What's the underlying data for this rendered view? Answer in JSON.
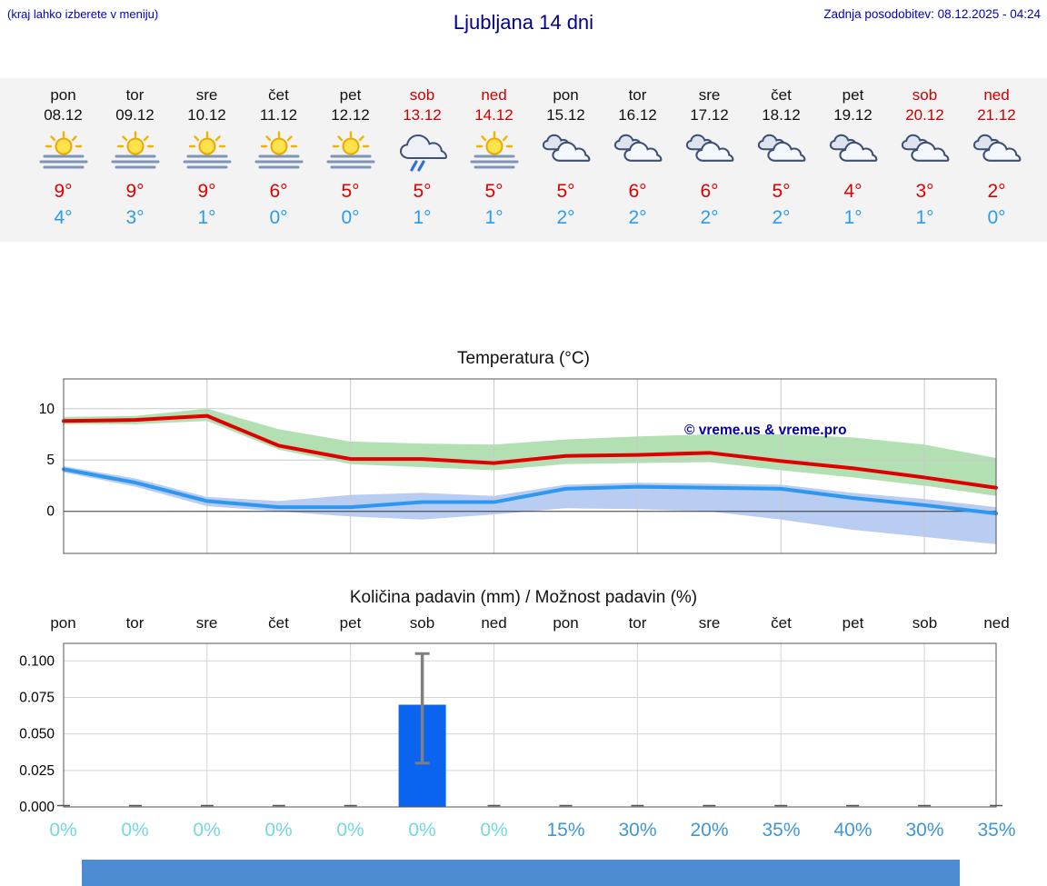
{
  "header": {
    "menu_hint": "(kraj lahko izberete v meniju)",
    "title": "Ljubljana 14 dni",
    "last_update": "Zadnja posodobitev: 08.12.2025 - 04:24"
  },
  "colors": {
    "link_blue": "#0000cc",
    "title_navy": "#00008b",
    "weekend_red": "#cc0000",
    "temp_max_red": "#dd0000",
    "temp_min_blue": "#2b9af0",
    "bar_blue": "#0b64f0",
    "prob_low_cyan": "#72d9e2",
    "prob_high_blue": "#3e96d9",
    "banner_blue": "#4d8bd3"
  },
  "forecast": {
    "days": [
      {
        "name": "pon",
        "date": "08.12",
        "weekend": false,
        "icon": "sun-fog",
        "tmax": "9°",
        "tmin": "4°"
      },
      {
        "name": "tor",
        "date": "09.12",
        "weekend": false,
        "icon": "sun-fog",
        "tmax": "9°",
        "tmin": "3°"
      },
      {
        "name": "sre",
        "date": "10.12",
        "weekend": false,
        "icon": "sun-fog",
        "tmax": "9°",
        "tmin": "1°"
      },
      {
        "name": "čet",
        "date": "11.12",
        "weekend": false,
        "icon": "sun-fog",
        "tmax": "6°",
        "tmin": "0°"
      },
      {
        "name": "pet",
        "date": "12.12",
        "weekend": false,
        "icon": "sun-fog",
        "tmax": "5°",
        "tmin": "0°"
      },
      {
        "name": "sob",
        "date": "13.12",
        "weekend": true,
        "icon": "rain",
        "tmax": "5°",
        "tmin": "1°"
      },
      {
        "name": "ned",
        "date": "14.12",
        "weekend": true,
        "icon": "sun-fog",
        "tmax": "5°",
        "tmin": "1°"
      },
      {
        "name": "pon",
        "date": "15.12",
        "weekend": false,
        "icon": "cloudy",
        "tmax": "5°",
        "tmin": "2°"
      },
      {
        "name": "tor",
        "date": "16.12",
        "weekend": false,
        "icon": "cloudy",
        "tmax": "6°",
        "tmin": "2°"
      },
      {
        "name": "sre",
        "date": "17.12",
        "weekend": false,
        "icon": "cloudy",
        "tmax": "6°",
        "tmin": "2°"
      },
      {
        "name": "čet",
        "date": "18.12",
        "weekend": false,
        "icon": "cloudy",
        "tmax": "5°",
        "tmin": "2°"
      },
      {
        "name": "pet",
        "date": "19.12",
        "weekend": false,
        "icon": "cloudy",
        "tmax": "4°",
        "tmin": "1°"
      },
      {
        "name": "sob",
        "date": "20.12",
        "weekend": true,
        "icon": "cloudy",
        "tmax": "3°",
        "tmin": "1°"
      },
      {
        "name": "ned",
        "date": "21.12",
        "weekend": true,
        "icon": "cloudy",
        "tmax": "2°",
        "tmin": "0°"
      }
    ]
  },
  "chart_data": [
    {
      "type": "line",
      "title": "Temperatura (°C)",
      "categories": [
        "pon",
        "tor",
        "sre",
        "čet",
        "pet",
        "sob",
        "ned",
        "pon",
        "tor",
        "sre",
        "čet",
        "pet",
        "sob",
        "ned"
      ],
      "ylim": [
        -4.1,
        12.9
      ],
      "yticks": [
        0,
        5,
        10
      ],
      "grid": true,
      "watermark": "© vreme.us & vreme.pro",
      "series": [
        {
          "name": "temp-max",
          "color": "#e00000",
          "values": [
            8.8,
            8.9,
            9.3,
            6.4,
            5.1,
            5.1,
            4.7,
            5.4,
            5.5,
            5.7,
            4.9,
            4.2,
            3.3,
            2.3
          ]
        },
        {
          "name": "temp-min",
          "color": "#2e97f0",
          "values": [
            4.1,
            2.8,
            1.0,
            0.4,
            0.4,
            0.9,
            0.9,
            2.2,
            2.4,
            2.3,
            2.2,
            1.3,
            0.6,
            -0.2
          ]
        }
      ],
      "bands": [
        {
          "name": "temp-max-range",
          "color": "#9fd89f",
          "upper": [
            9.2,
            9.3,
            10.0,
            8.0,
            6.8,
            6.6,
            6.5,
            7.0,
            7.3,
            7.5,
            7.5,
            7.2,
            6.5,
            5.2
          ],
          "lower": [
            8.5,
            8.5,
            8.8,
            6.0,
            4.6,
            4.3,
            4.0,
            4.6,
            4.7,
            4.8,
            4.0,
            3.3,
            2.5,
            1.5
          ]
        },
        {
          "name": "temp-min-range",
          "color": "#a8bfee",
          "upper": [
            4.4,
            3.2,
            1.4,
            1.0,
            1.6,
            1.8,
            1.5,
            2.6,
            2.8,
            2.7,
            2.6,
            1.8,
            1.2,
            0.4
          ],
          "lower": [
            3.8,
            2.4,
            0.5,
            0.0,
            -0.5,
            -0.8,
            -0.3,
            0.3,
            0.2,
            0.0,
            -0.8,
            -1.8,
            -2.5,
            -3.2
          ]
        }
      ]
    },
    {
      "type": "bar",
      "title": "Količina padavin (mm) / Možnost padavin (%)",
      "categories": [
        "pon",
        "tor",
        "sre",
        "čet",
        "pet",
        "sob",
        "ned",
        "pon",
        "tor",
        "sre",
        "čet",
        "pet",
        "sob",
        "ned"
      ],
      "ylim": [
        0,
        0.112
      ],
      "yticks": [
        0.0,
        0.025,
        0.05,
        0.075,
        0.1
      ],
      "grid": true,
      "values": [
        0,
        0,
        0,
        0,
        0,
        0.07,
        0,
        0,
        0,
        0,
        0,
        0,
        0,
        0
      ],
      "whiskers": [
        {
          "index": 5,
          "low": 0.03,
          "high": 0.105
        }
      ],
      "bar_color": "#0b64f0",
      "probabilities": [
        "0%",
        "0%",
        "0%",
        "0%",
        "0%",
        "0%",
        "0%",
        "15%",
        "30%",
        "20%",
        "35%",
        "40%",
        "30%",
        "35%"
      ],
      "prob_styles": [
        "low",
        "low",
        "low",
        "low",
        "low",
        "low",
        "low",
        "high",
        "high",
        "high",
        "high",
        "high",
        "high",
        "high"
      ]
    }
  ]
}
